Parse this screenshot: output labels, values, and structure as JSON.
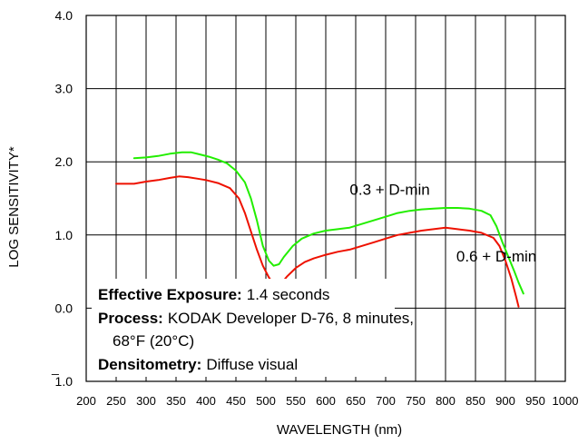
{
  "chart_data": {
    "type": "line",
    "title": "",
    "xlabel": "WAVELENGTH (nm)",
    "ylabel": "LOG SENSITIVITY*",
    "xlim": [
      200,
      1000
    ],
    "ylim": [
      -1.0,
      4.0
    ],
    "grid": true,
    "x_ticks": [
      "200",
      "250",
      "300",
      "350",
      "400",
      "450",
      "500",
      "550",
      "600",
      "650",
      "700",
      "750",
      "800",
      "850",
      "900",
      "950",
      "1000"
    ],
    "y_ticks": [
      {
        "value": 4.0,
        "label": "4.0",
        "bar": ""
      },
      {
        "value": 3.0,
        "label": "3.0",
        "bar": ""
      },
      {
        "value": 2.0,
        "label": "2.0",
        "bar": ""
      },
      {
        "value": 1.0,
        "label": "1.0",
        "bar": ""
      },
      {
        "value": 0.0,
        "label": "0.0",
        "bar": ""
      },
      {
        "value": -1.0,
        "label": "1.0",
        "bar": "_"
      }
    ],
    "series": [
      {
        "name": "0.3 + D-min",
        "color": "#22ee00",
        "label_anchor": {
          "x": 640,
          "y": 1.55
        },
        "points": [
          [
            280,
            2.05
          ],
          [
            300,
            2.06
          ],
          [
            320,
            2.08
          ],
          [
            340,
            2.11
          ],
          [
            360,
            2.13
          ],
          [
            375,
            2.13
          ],
          [
            390,
            2.1
          ],
          [
            405,
            2.07
          ],
          [
            420,
            2.03
          ],
          [
            435,
            1.98
          ],
          [
            450,
            1.88
          ],
          [
            465,
            1.72
          ],
          [
            475,
            1.5
          ],
          [
            485,
            1.2
          ],
          [
            495,
            0.85
          ],
          [
            505,
            0.65
          ],
          [
            513,
            0.58
          ],
          [
            522,
            0.6
          ],
          [
            530,
            0.7
          ],
          [
            545,
            0.85
          ],
          [
            560,
            0.95
          ],
          [
            580,
            1.02
          ],
          [
            600,
            1.06
          ],
          [
            620,
            1.08
          ],
          [
            640,
            1.1
          ],
          [
            660,
            1.15
          ],
          [
            680,
            1.2
          ],
          [
            700,
            1.25
          ],
          [
            720,
            1.3
          ],
          [
            740,
            1.33
          ],
          [
            760,
            1.35
          ],
          [
            780,
            1.36
          ],
          [
            800,
            1.37
          ],
          [
            820,
            1.37
          ],
          [
            840,
            1.36
          ],
          [
            860,
            1.33
          ],
          [
            875,
            1.27
          ],
          [
            885,
            1.12
          ],
          [
            895,
            0.9
          ],
          [
            905,
            0.7
          ],
          [
            915,
            0.5
          ],
          [
            922,
            0.35
          ],
          [
            930,
            0.2
          ]
        ]
      },
      {
        "name": "0.6 + D-min",
        "color": "#ee1100",
        "label_anchor": {
          "x": 818,
          "y": 0.64
        },
        "points": [
          [
            250,
            1.7
          ],
          [
            280,
            1.7
          ],
          [
            300,
            1.73
          ],
          [
            320,
            1.75
          ],
          [
            340,
            1.78
          ],
          [
            355,
            1.8
          ],
          [
            370,
            1.79
          ],
          [
            385,
            1.77
          ],
          [
            400,
            1.75
          ],
          [
            420,
            1.71
          ],
          [
            440,
            1.64
          ],
          [
            455,
            1.5
          ],
          [
            465,
            1.3
          ],
          [
            475,
            1.05
          ],
          [
            485,
            0.8
          ],
          [
            495,
            0.58
          ],
          [
            505,
            0.42
          ],
          [
            515,
            0.3
          ],
          [
            525,
            0.33
          ],
          [
            535,
            0.43
          ],
          [
            550,
            0.55
          ],
          [
            565,
            0.63
          ],
          [
            580,
            0.68
          ],
          [
            600,
            0.73
          ],
          [
            620,
            0.77
          ],
          [
            640,
            0.8
          ],
          [
            660,
            0.85
          ],
          [
            680,
            0.9
          ],
          [
            700,
            0.95
          ],
          [
            720,
            1.0
          ],
          [
            740,
            1.03
          ],
          [
            760,
            1.06
          ],
          [
            780,
            1.08
          ],
          [
            800,
            1.1
          ],
          [
            820,
            1.08
          ],
          [
            840,
            1.06
          ],
          [
            860,
            1.03
          ],
          [
            880,
            0.96
          ],
          [
            890,
            0.85
          ],
          [
            900,
            0.65
          ],
          [
            910,
            0.4
          ],
          [
            918,
            0.15
          ],
          [
            922,
            0.02
          ]
        ]
      }
    ]
  },
  "annotation": {
    "line1_label": "Effective Exposure:",
    "line1_value": "1.4 seconds",
    "line2_label": "Process:",
    "line2_value": "KODAK Developer D-76, 8 minutes,",
    "line3_value": "68°F (20°C)",
    "line4_label": "Densitometry:",
    "line4_value": "Diffuse visual"
  }
}
